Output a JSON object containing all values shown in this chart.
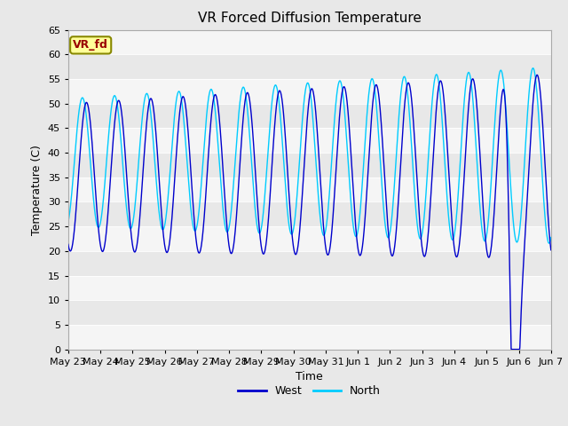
{
  "title": "VR Forced Diffusion Temperature",
  "ylabel": "Temperature (C)",
  "xlabel": "Time",
  "ylim": [
    0,
    65
  ],
  "yticks": [
    0,
    5,
    10,
    15,
    20,
    25,
    30,
    35,
    40,
    45,
    50,
    55,
    60,
    65
  ],
  "xtick_labels": [
    "May 23",
    "May 24",
    "May 25",
    "May 26",
    "May 27",
    "May 28",
    "May 29",
    "May 30",
    "May 31",
    "Jun 1",
    "Jun 2",
    "Jun 3",
    "Jun 4",
    "Jun 5",
    "Jun 6",
    "Jun 7"
  ],
  "west_color": "#0000CC",
  "north_color": "#00CCFF",
  "bg_color": "#E8E8E8",
  "annotation_text": "VR_fd",
  "annotation_bg": "#FFFF99",
  "annotation_fg": "#990000",
  "legend_west": "West",
  "legend_north": "North",
  "title_fontsize": 11,
  "label_fontsize": 9,
  "tick_fontsize": 8
}
